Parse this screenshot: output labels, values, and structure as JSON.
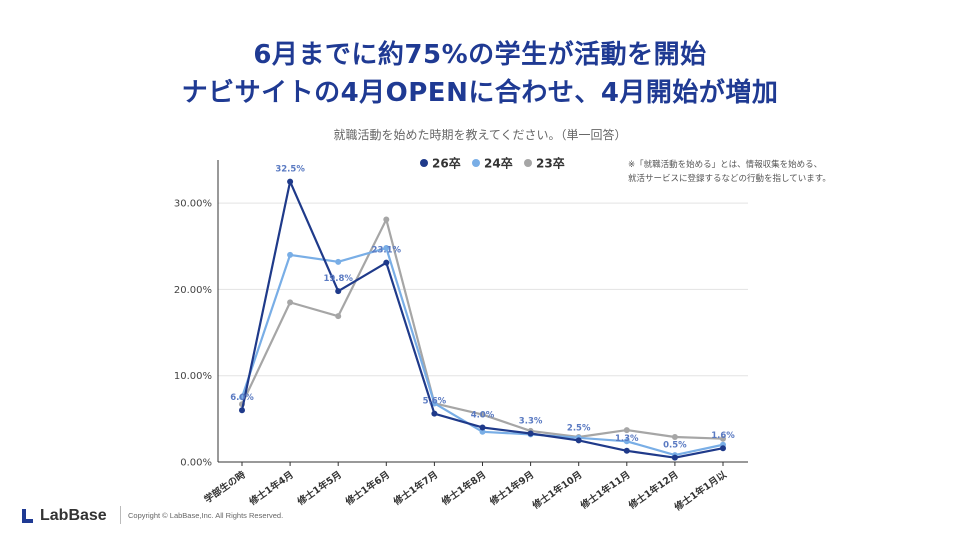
{
  "headline": {
    "line1": "6月までに約75%の学生が活動を開始",
    "line2": "ナビサイトの4月OPENに合わせ、4月開始が増加"
  },
  "question": "就職活動を始めた時期を教えてください。（単一回答）",
  "note": {
    "line1": "※「就職活動を始める」とは、情報収集を始める、",
    "line2": "就活サービスに登録するなどの行動を指しています。"
  },
  "footer": {
    "logo": "LabBase",
    "copyright": "Copyright © LabBase,Inc. All Rights Reserved."
  },
  "colors": {
    "s26": "#1f3a8a",
    "s24": "#79aee6",
    "s23": "#a6a6a6",
    "title": "#1f3a93",
    "label": "#5a7ac2"
  },
  "chart_data": {
    "type": "line",
    "title": "",
    "xlabel": "",
    "ylabel": "",
    "ylim": [
      0,
      35
    ],
    "yticks": [
      "0.00%",
      "10.00%",
      "20.00%",
      "30.00%"
    ],
    "ytick_values": [
      0,
      10,
      20,
      30
    ],
    "grid": true,
    "legend_position": "top",
    "categories": [
      "学部生の時",
      "修士1年4月",
      "修士1年5月",
      "修士1年6月",
      "修士1年7月",
      "修士1年8月",
      "修士1年9月",
      "修士1年10月",
      "修士1年11月",
      "修士1年12月",
      "修士1年1月以"
    ],
    "series": [
      {
        "name": "26卒",
        "color": "#1f3a8a",
        "values": [
          6.0,
          32.5,
          19.8,
          23.1,
          5.6,
          4.0,
          3.3,
          2.5,
          1.3,
          0.5,
          1.6
        ],
        "labels": [
          "6.0%",
          "32.5%",
          "19.8%",
          "23.1%",
          "5.6%",
          "4.0%",
          "3.3%",
          "2.5%",
          "1.3%",
          "0.5%",
          "1.6%"
        ]
      },
      {
        "name": "24卒",
        "color": "#79aee6",
        "values": [
          7.5,
          24.0,
          23.2,
          24.8,
          6.8,
          3.5,
          3.2,
          2.8,
          2.4,
          0.8,
          2.0
        ]
      },
      {
        "name": "23卒",
        "color": "#a6a6a6",
        "values": [
          6.7,
          18.5,
          16.9,
          28.1,
          6.8,
          5.5,
          3.6,
          2.9,
          3.7,
          2.9,
          2.7
        ]
      }
    ]
  }
}
